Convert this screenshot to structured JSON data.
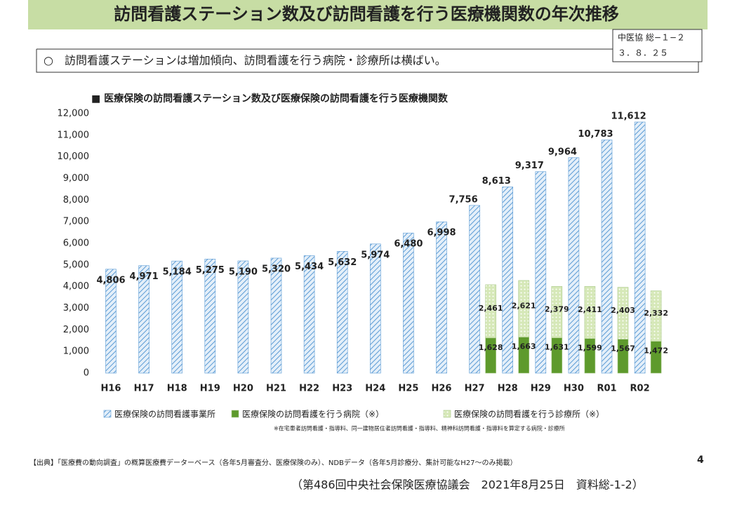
{
  "header": {
    "title": "訪問看護ステーション数及び訪問看護を行う医療機関数の年次推移",
    "meeting_box": [
      "中医協 総−１−２",
      "３．８．２５"
    ],
    "summary": "○　訪問看護ステーションは増加傾向、訪問看護を行う病院・診療所は横ばい。"
  },
  "chart_data": {
    "type": "bar",
    "title": "■ 医療保険の訪問看護ステーション数及び医療保険の訪問看護を行う医療機関数",
    "categories": [
      "H16",
      "H17",
      "H18",
      "H19",
      "H20",
      "H21",
      "H22",
      "H23",
      "H24",
      "H25",
      "H26",
      "H27",
      "H28",
      "H29",
      "H30",
      "R01",
      "R02"
    ],
    "series": [
      {
        "name": "医療保険の訪問看護事業所",
        "color": "#5b9bd5",
        "values": [
          4806,
          4971,
          5184,
          5275,
          5190,
          5320,
          5434,
          5632,
          5974,
          6480,
          6998,
          7756,
          8613,
          9317,
          9964,
          10783,
          11612
        ],
        "value_labels": [
          "4,806",
          "4,971",
          "5,184",
          "5,275",
          "5,190",
          "5,320",
          "5,434",
          "5,632",
          "5,974",
          "6,480",
          "6,998",
          "7,756",
          "8,613",
          "9,317",
          "9,964",
          "10,783",
          "11,612"
        ]
      },
      {
        "name": "医療保険の訪問看護を行う病院（※）",
        "color": "#5e9a2c",
        "stack": "facilities",
        "values": [
          null,
          null,
          null,
          null,
          null,
          null,
          null,
          null,
          null,
          null,
          null,
          1628,
          1663,
          1631,
          1599,
          1567,
          1472
        ],
        "value_labels": [
          null,
          null,
          null,
          null,
          null,
          null,
          null,
          null,
          null,
          null,
          null,
          "1,628",
          "1,663",
          "1,631",
          "1,599",
          "1,567",
          "1,472"
        ]
      },
      {
        "name": "医療保険の訪問看護を行う診療所（※）",
        "color": "#d6e8b8",
        "stack": "facilities",
        "values": [
          null,
          null,
          null,
          null,
          null,
          null,
          null,
          null,
          null,
          null,
          null,
          2461,
          2621,
          2379,
          2411,
          2403,
          2332
        ],
        "value_labels": [
          null,
          null,
          null,
          null,
          null,
          null,
          null,
          null,
          null,
          null,
          null,
          "2,461",
          "2,621",
          "2,379",
          "2,411",
          "2,403",
          "2,332"
        ]
      }
    ],
    "ylim": [
      0,
      12000
    ],
    "yticks": [
      0,
      {
        "value": 1000,
        "label": "1,000"
      },
      {
        "value": 2000,
        "label": "2,000"
      },
      {
        "value": 3000,
        "label": "3,000"
      },
      {
        "value": 4000,
        "label": "4,000"
      },
      {
        "value": 5000,
        "label": "5,000"
      },
      {
        "value": 6000,
        "label": "6,000"
      },
      {
        "value": 7000,
        "label": "7,000"
      },
      {
        "value": 8000,
        "label": "8,000"
      },
      {
        "value": 9000,
        "label": "9,000"
      },
      {
        "value": 10000,
        "label": "10,000"
      },
      {
        "value": 11000,
        "label": "11,000"
      },
      {
        "value": 12000,
        "label": "12,000"
      }
    ],
    "grid": false,
    "footnote": "※在宅患者訪問看護・指導料、同一建物居住者訪問看護・指導料、精神科訪問看護・指導料を算定する病院・診療所"
  },
  "footer": {
    "source": "【出典】「医療費の動向調査」の概算医療費データーベース（各年5月審査分、医療保険のみ）、NDBデータ（各年5月診療分、集計可能なH27～のみ掲載）",
    "page_number": "4",
    "citation": "（第486回中央社会保険医療協議会　2021年8月25日　資料総-1-2）"
  }
}
